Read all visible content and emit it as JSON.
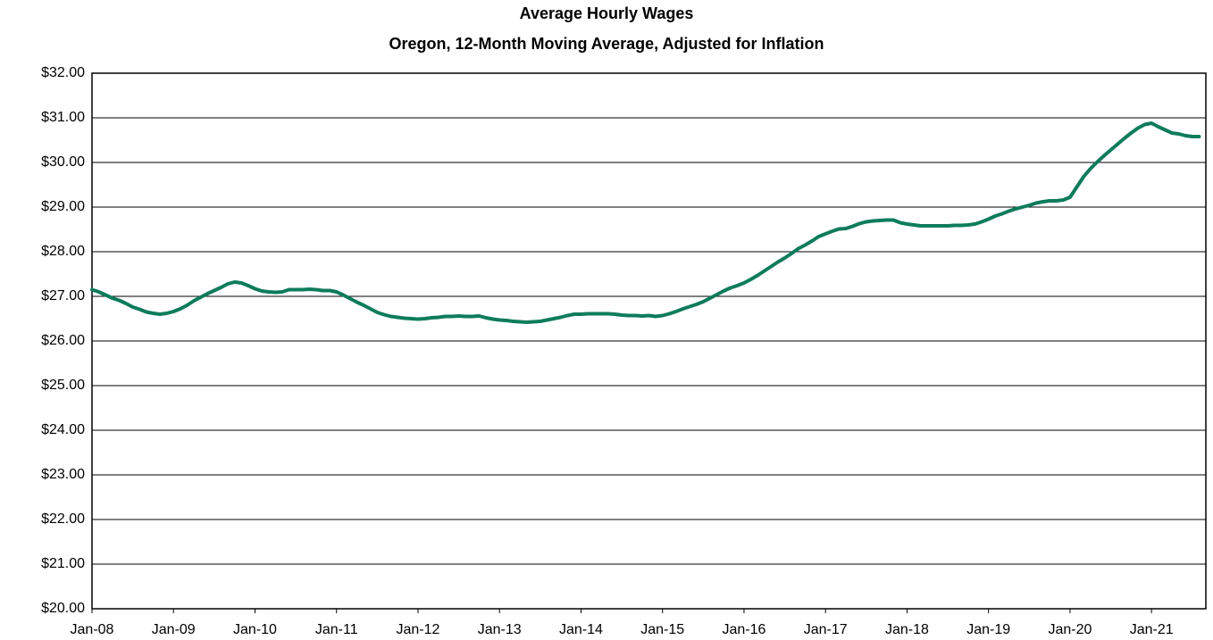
{
  "chart_data": {
    "type": "line",
    "title": "Average Hourly Wages",
    "subtitle": "Oregon, 12-Month Moving Average, Adjusted for Inflation",
    "color": "#0e7c5b",
    "grid": true,
    "categories": [
      "Jan-08",
      null,
      null,
      null,
      null,
      null,
      null,
      null,
      null,
      null,
      null,
      null,
      "Jan-09",
      null,
      null,
      null,
      null,
      null,
      null,
      null,
      null,
      null,
      null,
      null,
      "Jan-10",
      null,
      null,
      null,
      null,
      null,
      null,
      null,
      null,
      null,
      null,
      null,
      "Jan-11",
      null,
      null,
      null,
      null,
      null,
      null,
      null,
      null,
      null,
      null,
      null,
      "Jan-12",
      null,
      null,
      null,
      null,
      null,
      null,
      null,
      null,
      null,
      null,
      null,
      "Jan-13",
      null,
      null,
      null,
      null,
      null,
      null,
      null,
      null,
      null,
      null,
      null,
      "Jan-14",
      null,
      null,
      null,
      null,
      null,
      null,
      null,
      null,
      null,
      null,
      null,
      "Jan-15",
      null,
      null,
      null,
      null,
      null,
      null,
      null,
      null,
      null,
      null,
      null,
      "Jan-16",
      null,
      null,
      null,
      null,
      null,
      null,
      null,
      null,
      null,
      null,
      null,
      "Jan-17",
      null,
      null,
      null,
      null,
      null,
      null,
      null,
      null,
      null,
      null,
      null,
      "Jan-18",
      null,
      null,
      null,
      null,
      null,
      null,
      null,
      null,
      null,
      null,
      null,
      "Jan-19",
      null,
      null,
      null,
      null,
      null,
      null,
      null,
      null,
      null,
      null,
      null,
      "Jan-20",
      null,
      null,
      null,
      null,
      null,
      null,
      null,
      null,
      null,
      null,
      null,
      "Jan-21",
      null,
      null,
      null,
      null,
      null,
      null,
      null
    ],
    "values": [
      27.15,
      27.1,
      27.03,
      26.96,
      26.91,
      26.84,
      26.76,
      26.71,
      26.65,
      26.62,
      26.6,
      26.62,
      26.66,
      26.72,
      26.8,
      26.9,
      26.98,
      27.06,
      27.13,
      27.2,
      27.28,
      27.32,
      27.3,
      27.24,
      27.17,
      27.12,
      27.1,
      27.09,
      27.1,
      27.15,
      27.15,
      27.15,
      27.16,
      27.15,
      27.13,
      27.13,
      27.1,
      27.03,
      26.95,
      26.87,
      26.8,
      26.72,
      26.64,
      26.59,
      26.55,
      26.53,
      26.51,
      26.5,
      26.49,
      26.5,
      26.52,
      26.53,
      26.55,
      26.55,
      26.56,
      26.55,
      26.55,
      26.56,
      26.52,
      26.49,
      26.47,
      26.46,
      26.44,
      26.43,
      26.42,
      26.43,
      26.44,
      26.47,
      26.5,
      26.53,
      26.57,
      26.6,
      26.6,
      26.61,
      26.61,
      26.61,
      26.61,
      26.6,
      26.58,
      26.57,
      26.57,
      26.56,
      26.57,
      26.55,
      26.57,
      26.61,
      26.66,
      26.72,
      26.77,
      26.82,
      26.88,
      26.96,
      27.04,
      27.12,
      27.19,
      27.24,
      27.3,
      27.38,
      27.47,
      27.57,
      27.67,
      27.77,
      27.86,
      27.96,
      28.07,
      28.15,
      28.24,
      28.34,
      28.4,
      28.46,
      28.51,
      28.52,
      28.57,
      28.63,
      28.67,
      28.69,
      28.7,
      28.71,
      28.71,
      28.65,
      28.62,
      28.6,
      28.58,
      28.58,
      28.58,
      28.58,
      28.58,
      28.59,
      28.59,
      28.6,
      28.62,
      28.67,
      28.73,
      28.8,
      28.85,
      28.91,
      28.96,
      29.0,
      29.04,
      29.09,
      29.12,
      29.14,
      29.14,
      29.16,
      29.22,
      29.45,
      29.68,
      29.86,
      30.01,
      30.15,
      30.28,
      30.41,
      30.54,
      30.66,
      30.77,
      30.85,
      30.88,
      30.8,
      30.73,
      30.66,
      30.64,
      30.6,
      30.58,
      30.58
    ],
    "ylim": [
      20,
      32
    ],
    "yticks": [
      {
        "value": 20,
        "label": "$20.00"
      },
      {
        "value": 21,
        "label": "$21.00"
      },
      {
        "value": 22,
        "label": "$22.00"
      },
      {
        "value": 23,
        "label": "$23.00"
      },
      {
        "value": 24,
        "label": "$24.00"
      },
      {
        "value": 25,
        "label": "$25.00"
      },
      {
        "value": 26,
        "label": "$26.00"
      },
      {
        "value": 27,
        "label": "$27.00"
      },
      {
        "value": 28,
        "label": "$28.00"
      },
      {
        "value": 29,
        "label": "$29.00"
      },
      {
        "value": 30,
        "label": "$30.00"
      },
      {
        "value": 31,
        "label": "$31.00"
      },
      {
        "value": 32,
        "label": "$32.00"
      }
    ]
  }
}
